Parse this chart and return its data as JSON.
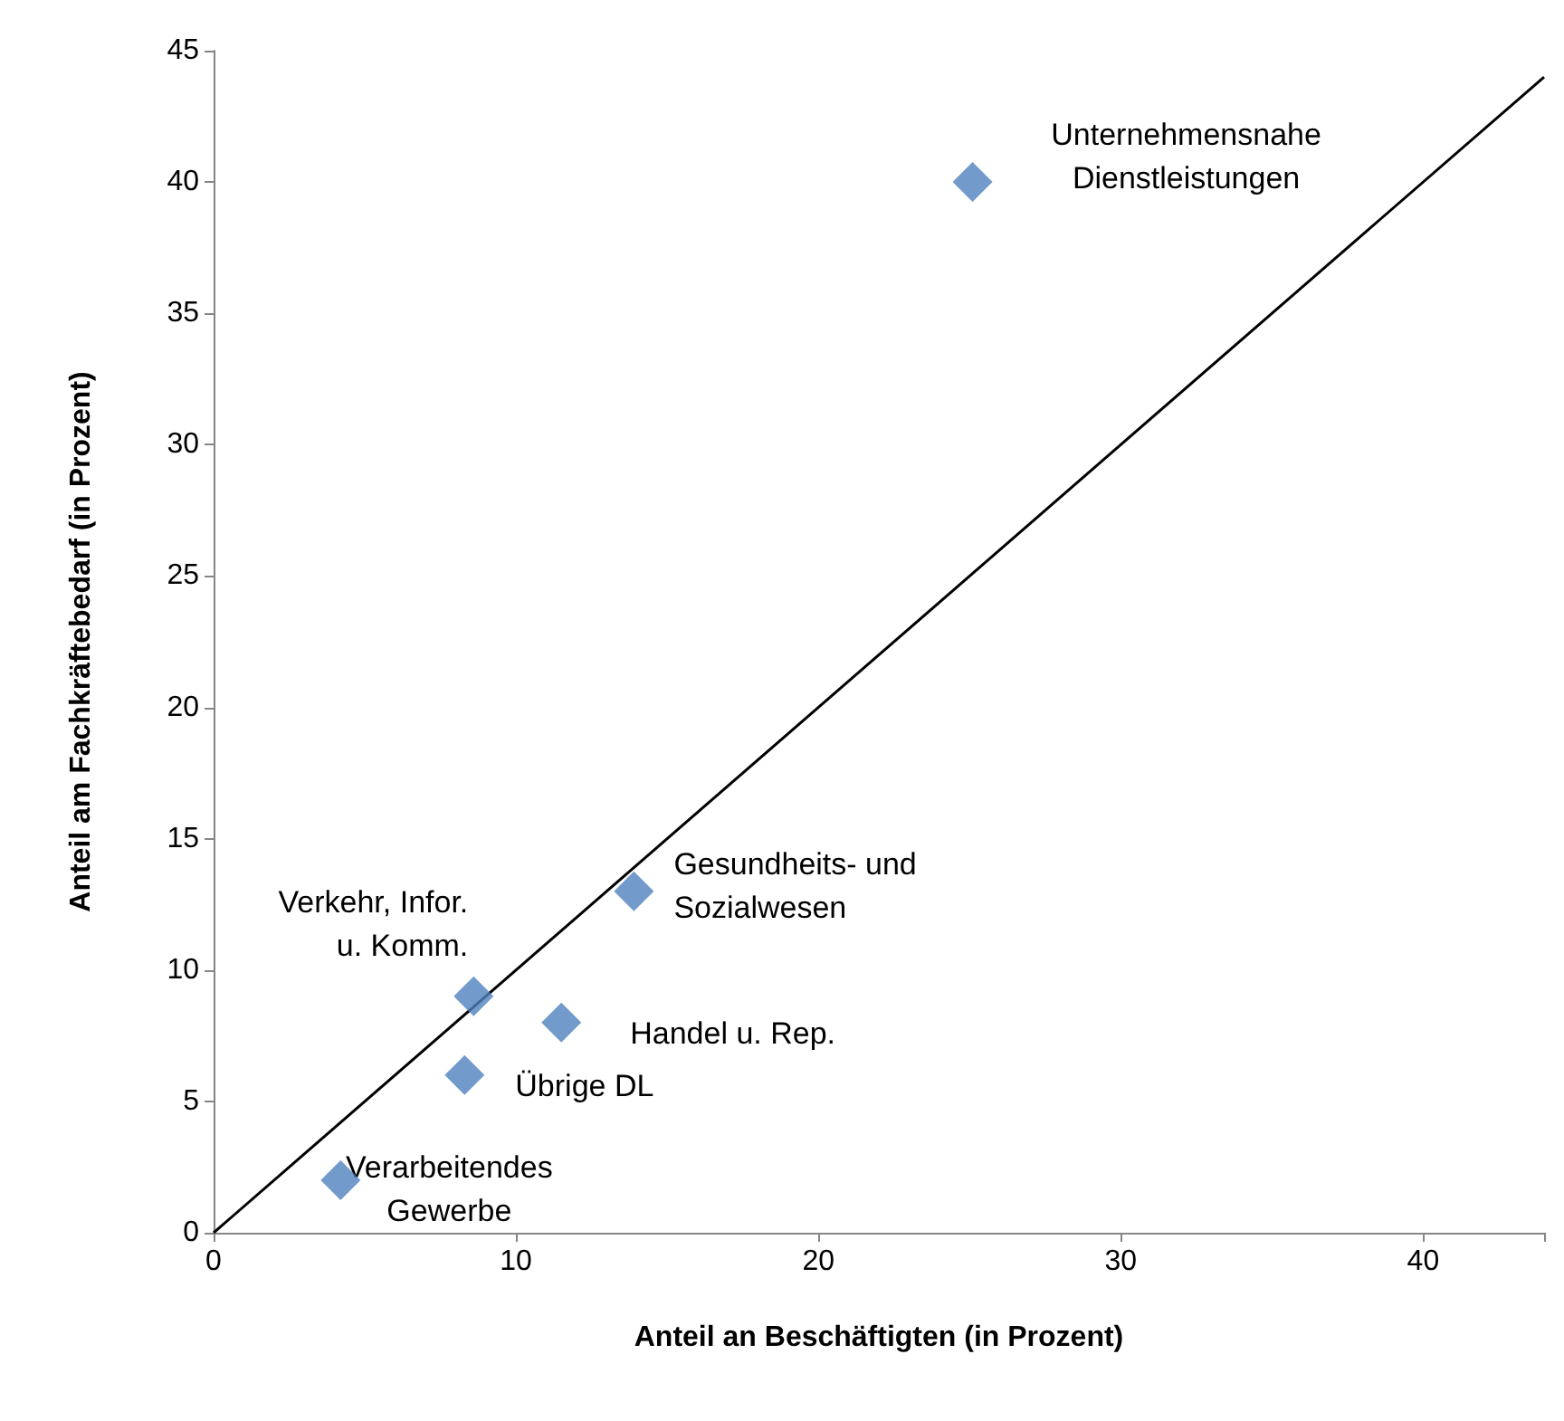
{
  "chart_data": {
    "type": "scatter",
    "xlabel": "Anteil an Beschäftigten (in Prozent)",
    "ylabel": "Anteil am Fachkräftebedarf (in Prozent)",
    "xlim": [
      0,
      44
    ],
    "xticks": [
      0,
      10,
      20,
      30,
      40
    ],
    "ylim": [
      0,
      45
    ],
    "yticks": [
      0,
      5,
      10,
      15,
      20,
      25,
      30,
      35,
      40,
      45
    ],
    "grid": false,
    "series": [
      {
        "color": "#4f81bd",
        "marker": "diamond",
        "x": [
          25.1,
          13.9,
          8.6,
          11.5,
          8.3,
          4.2
        ],
        "values": [
          40,
          13,
          9,
          8,
          6,
          2
        ]
      },
      {
        "type": "line",
        "color": "#000000",
        "marker": "none",
        "line_style": "solid",
        "x": [
          0,
          44
        ],
        "values": [
          0,
          44
        ]
      }
    ],
    "annotations": [
      {
        "text": "Unternehmensnahe\nDienstleistungen",
        "x": 25.1,
        "y": 40
      },
      {
        "text": "Gesundheits- und\nSozialwesen",
        "x": 13.9,
        "y": 13
      },
      {
        "text": "Verkehr, Infor.\nu. Komm.",
        "x": 8.6,
        "y": 9
      },
      {
        "text": "Handel u. Rep.",
        "x": 11.5,
        "y": 8
      },
      {
        "text": "Übrige DL",
        "x": 8.3,
        "y": 6
      },
      {
        "text": "Verarbeitendes\nGewerbe",
        "x": 4.2,
        "y": 2
      }
    ]
  }
}
